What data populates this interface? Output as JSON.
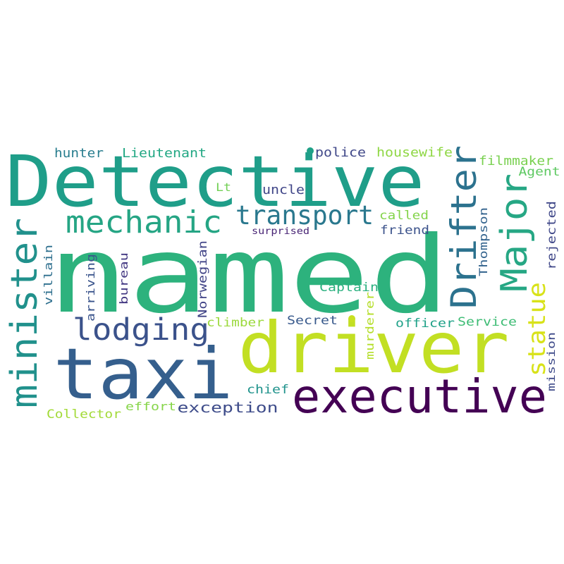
{
  "word_cloud": {
    "background_color": "#ffffff",
    "words": [
      {
        "id": "named",
        "text": "named",
        "color": "#2db27d"
      },
      {
        "id": "detective",
        "text": "Detective",
        "color": "#1f9e89"
      },
      {
        "id": "driver",
        "text": "driver",
        "color": "#c2df23"
      },
      {
        "id": "taxi",
        "text": "taxi",
        "color": "#355f8d"
      },
      {
        "id": "executive",
        "text": "executive",
        "color": "#440154"
      },
      {
        "id": "minister",
        "text": "minister",
        "color": "#21918c"
      },
      {
        "id": "mechanic",
        "text": "mechanic",
        "color": "#25a584"
      },
      {
        "id": "transport",
        "text": "transport",
        "color": "#2a788e"
      },
      {
        "id": "lodging",
        "text": "lodging",
        "color": "#3b528b"
      },
      {
        "id": "drifter",
        "text": "Drifter",
        "color": "#2c728e"
      },
      {
        "id": "major",
        "text": "Major",
        "color": "#26a784"
      },
      {
        "id": "statue",
        "text": "statue",
        "color": "#d8e219"
      },
      {
        "id": "hunter",
        "text": "hunter",
        "color": "#287d8e"
      },
      {
        "id": "lieutenant",
        "text": "Lieutenant",
        "color": "#23a884"
      },
      {
        "id": "police",
        "text": "police",
        "color": "#3f4788"
      },
      {
        "id": "housewife",
        "text": "housewife",
        "color": "#8fd744"
      },
      {
        "id": "filmmaker",
        "text": "filmmaker",
        "color": "#7ad151"
      },
      {
        "id": "agent",
        "text": "Agent",
        "color": "#5ec962"
      },
      {
        "id": "lt",
        "text": "Lt",
        "color": "#73d056"
      },
      {
        "id": "uncle",
        "text": "uncle",
        "color": "#404688"
      },
      {
        "id": "called",
        "text": "called",
        "color": "#84d44b"
      },
      {
        "id": "friend",
        "text": "friend",
        "color": "#3b528b"
      },
      {
        "id": "surprised",
        "text": "surprised",
        "color": "#482475"
      },
      {
        "id": "thompson",
        "text": "Thompson",
        "color": "#33638d"
      },
      {
        "id": "rejected",
        "text": "rejected",
        "color": "#3f4788"
      },
      {
        "id": "villain",
        "text": "villain",
        "color": "#2e6f8e"
      },
      {
        "id": "arriving",
        "text": "arriving",
        "color": "#3a548c"
      },
      {
        "id": "bureau",
        "text": "bureau",
        "color": "#443983"
      },
      {
        "id": "norwegian",
        "text": "Norwegian",
        "color": "#414487"
      },
      {
        "id": "captain",
        "text": "Captain",
        "color": "#2ab07f"
      },
      {
        "id": "climber",
        "text": "climber",
        "color": "#9bd93c"
      },
      {
        "id": "secret",
        "text": "Secret",
        "color": "#38598c"
      },
      {
        "id": "murderer",
        "text": "murderer",
        "color": "#b5de2b"
      },
      {
        "id": "officer",
        "text": "officer",
        "color": "#1fa188"
      },
      {
        "id": "service",
        "text": "Service",
        "color": "#3dbc74"
      },
      {
        "id": "mission",
        "text": "mission",
        "color": "#3e4a89"
      },
      {
        "id": "chief",
        "text": "chief",
        "color": "#20938c"
      },
      {
        "id": "exception",
        "text": "exception",
        "color": "#3e4c8a"
      },
      {
        "id": "effort",
        "text": "effort",
        "color": "#86d549"
      },
      {
        "id": "collector",
        "text": "Collector",
        "color": "#a2da37"
      }
    ],
    "dots": [
      {
        "id": "dot-teal",
        "color": "#1fa187"
      },
      {
        "id": "dot-lime",
        "color": "#c8e020"
      }
    ]
  }
}
